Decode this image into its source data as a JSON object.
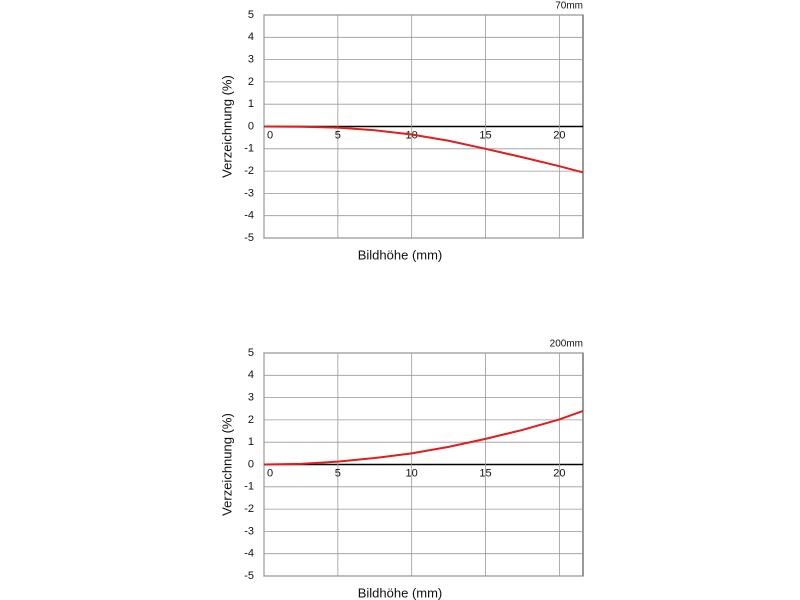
{
  "chart_data": [
    {
      "type": "line",
      "title": "70mm",
      "x_label": "Bildhöhe (mm)",
      "y_label": "Verzeichnung (%)",
      "x": [
        0,
        2.5,
        5,
        7.5,
        10,
        12.5,
        15,
        17.5,
        20,
        21.6
      ],
      "series": [
        {
          "color": "#e01e1e",
          "values": [
            0,
            -0.01,
            -0.05,
            -0.17,
            -0.36,
            -0.64,
            -1.0,
            -1.38,
            -1.78,
            -2.06
          ]
        }
      ],
      "xlim": [
        0,
        21.6
      ],
      "xticks": [
        0,
        5,
        10,
        15,
        20
      ],
      "ylim": [
        -5,
        5
      ],
      "yticks": [
        -5,
        -4,
        -3,
        -2,
        -1,
        0,
        1,
        2,
        3,
        4,
        5
      ],
      "grid": true
    },
    {
      "type": "line",
      "title": "200mm",
      "x_label": "Bildhöhe (mm)",
      "y_label": "Verzeichnung (%)",
      "x": [
        0,
        2.5,
        5,
        7.5,
        10,
        12.5,
        15,
        17.5,
        20,
        21.6
      ],
      "series": [
        {
          "color": "#e01e1e",
          "values": [
            0,
            0.03,
            0.13,
            0.29,
            0.5,
            0.79,
            1.15,
            1.55,
            2.02,
            2.4
          ]
        }
      ],
      "xlim": [
        0,
        21.6
      ],
      "xticks": [
        0,
        5,
        10,
        15,
        20
      ],
      "ylim": [
        -5,
        5
      ],
      "yticks": [
        -5,
        -4,
        -3,
        -2,
        -1,
        0,
        1,
        2,
        3,
        4,
        5
      ],
      "grid": true
    }
  ]
}
